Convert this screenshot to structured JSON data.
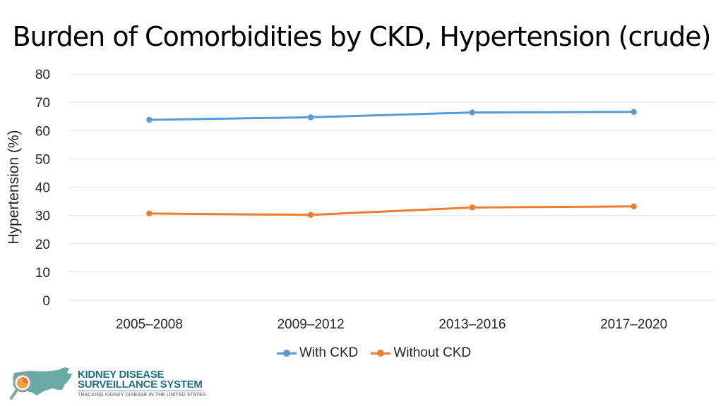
{
  "title": "Burden of Comorbidities by CKD, Hypertension (crude)",
  "chart_data": {
    "type": "line",
    "title": "Burden of Comorbidities by CKD, Hypertension (crude)",
    "xlabel": "",
    "ylabel": "Hypertension (%)",
    "categories": [
      "2005–2008",
      "2009–2012",
      "2013–2016",
      "2017–2020"
    ],
    "ylim": [
      0,
      80
    ],
    "yticks": [
      0,
      10,
      20,
      30,
      40,
      50,
      60,
      70,
      80
    ],
    "grid": true,
    "legend_position": "bottom",
    "series": [
      {
        "name": "With CKD",
        "color": "#5b9bd5",
        "values": [
          63.8,
          64.7,
          66.4,
          66.6
        ]
      },
      {
        "name": "Without CKD",
        "color": "#ed7d31",
        "values": [
          30.7,
          30.2,
          32.8,
          33.2
        ]
      }
    ]
  },
  "logo": {
    "line1": "KIDNEY DISEASE",
    "line2": "SURVEILLANCE SYSTEM",
    "tagline": "TRACKING KIDNEY DISEASE IN THE UNITED STATES",
    "icon": "us-map-magnifier-icon"
  }
}
